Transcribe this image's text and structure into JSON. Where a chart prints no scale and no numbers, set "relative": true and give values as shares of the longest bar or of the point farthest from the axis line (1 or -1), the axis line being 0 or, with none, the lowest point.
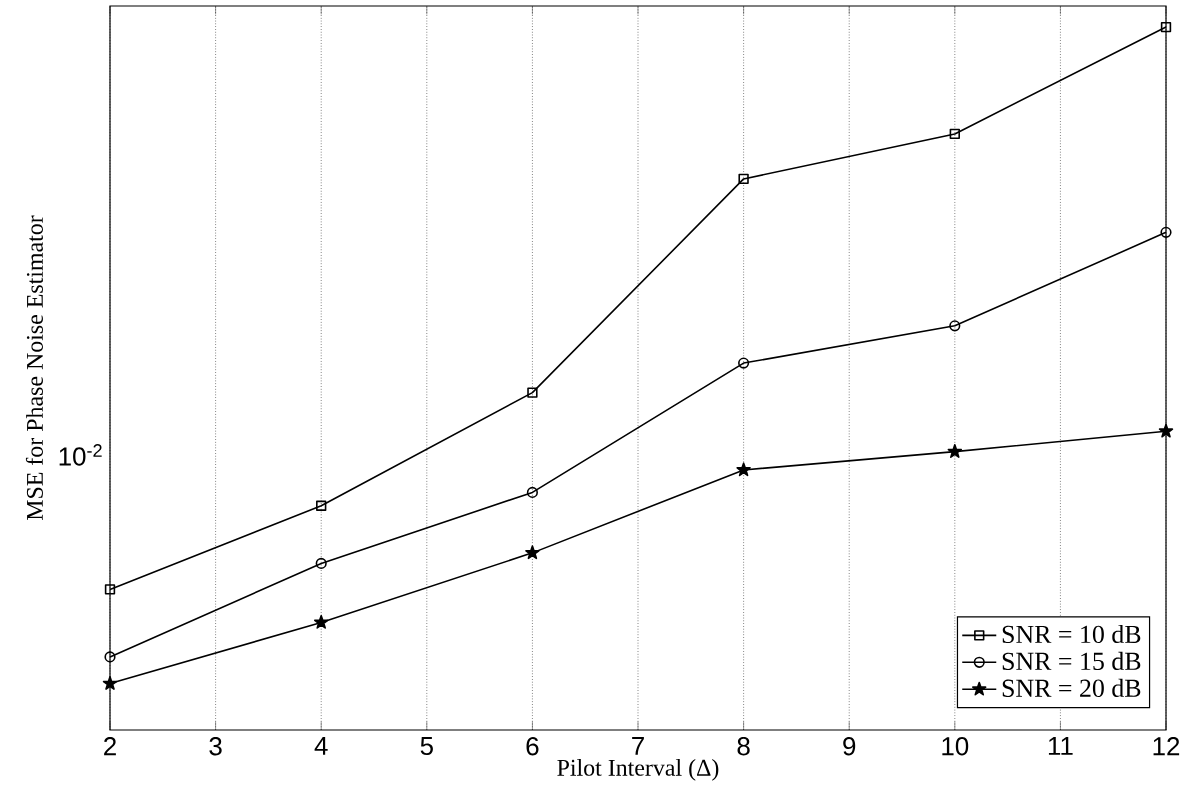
{
  "chart_data": {
    "type": "line",
    "xlabel": "Pilot Interval (Δ)",
    "ylabel": "MSE for Phase Noise Estimator",
    "x": [
      2,
      4,
      6,
      8,
      10,
      12
    ],
    "relative": true,
    "series": [
      {
        "name": "SNR = 10 dB",
        "color": "#000000",
        "marker": "square",
        "values": [
          0.2,
          0.319,
          0.48,
          0.784,
          0.848,
          1
        ]
      },
      {
        "name": "SNR = 15 dB",
        "color": "#000000",
        "marker": "circle",
        "values": [
          0.104,
          0.237,
          0.338,
          0.522,
          0.575,
          0.708
        ]
      },
      {
        "name": "SNR = 20 dB",
        "color": "#000000",
        "marker": "star",
        "values": [
          0.066,
          0.153,
          0.252,
          0.37,
          0.396,
          0.425
        ]
      }
    ],
    "annotations": [
      "10$^{-2}$"
    ],
    "grid": "x",
    "legend": "bottom right",
    "line_style": "solid",
    "xlim": [
      2,
      12
    ],
    "xticks": [
      2,
      3,
      4,
      5,
      6,
      7,
      8,
      9,
      10,
      11,
      12
    ]
  }
}
